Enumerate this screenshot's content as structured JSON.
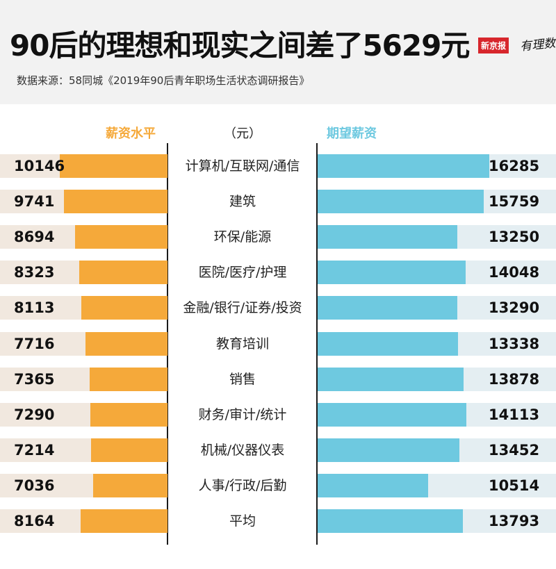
{
  "header": {
    "title": "90后的理想和现实之间差了5629元",
    "source": "数据来源：58同城《2019年90后青年职场生活状态调研报告》",
    "brand_box": "新京报",
    "brand_script": "有理数"
  },
  "colors": {
    "current": "#f5a93a",
    "expected": "#6ec9e0",
    "current_track": "#f1e8df",
    "expected_track": "#e4eef2"
  },
  "chart_data": {
    "type": "bar",
    "unit": "（元）",
    "categories": [
      "计算机/互联网/通信",
      "建筑",
      "环保/能源",
      "医院/医疗/护理",
      "金融/银行/证券/投资",
      "教育培训",
      "销售",
      "财务/审计/统计",
      "机械/仪器仪表",
      "人事/行政/后勤",
      "平均"
    ],
    "series": [
      {
        "name": "薪资水平",
        "values": [
          10146,
          9741,
          8694,
          8323,
          8113,
          7716,
          7365,
          7290,
          7214,
          7036,
          8164
        ]
      },
      {
        "name": "期望薪资",
        "values": [
          16285,
          15759,
          13250,
          14048,
          13290,
          13338,
          13878,
          14113,
          13452,
          10514,
          13793
        ]
      }
    ]
  }
}
